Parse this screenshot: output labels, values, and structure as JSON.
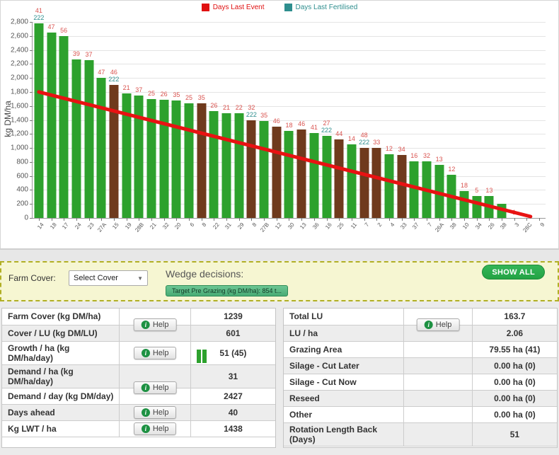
{
  "colors": {
    "bar_green": "#2da12d",
    "bar_brown": "#6f3a1d",
    "event_red": "#e01010",
    "fertilised_teal": "#2e8e8e",
    "trend_red": "#e81212"
  },
  "chart_data": {
    "type": "bar",
    "title": "",
    "xlabel": "",
    "ylabel": "kg DM/ha",
    "ylim": [
      0,
      2800
    ],
    "ytick_step": 200,
    "grid": true,
    "legend_position": "top-center",
    "legend": [
      {
        "label": "Days Last Event",
        "color": "#e01010"
      },
      {
        "label": "Days Last Fertilised",
        "color": "#2e8e8e"
      }
    ],
    "trend_line": {
      "start_value": 1800,
      "end_value": 0,
      "color": "#e81212"
    },
    "bars": [
      {
        "paddock": "14",
        "value": 2780,
        "color": "green",
        "days_last_event": 41,
        "days_last_fertilised": 222
      },
      {
        "paddock": "18",
        "value": 2650,
        "color": "green",
        "days_last_event": 47
      },
      {
        "paddock": "17",
        "value": 2600,
        "color": "green",
        "days_last_event": 56
      },
      {
        "paddock": "24",
        "value": 2260,
        "color": "green",
        "days_last_event": 39
      },
      {
        "paddock": "23",
        "value": 2250,
        "color": "green",
        "days_last_event": 37
      },
      {
        "paddock": "27A",
        "value": 2000,
        "color": "green",
        "days_last_event": 47
      },
      {
        "paddock": "15",
        "value": 1900,
        "color": "brown",
        "days_last_event": 46,
        "days_last_fertilised": 222
      },
      {
        "paddock": "19",
        "value": 1780,
        "color": "green",
        "days_last_event": 21
      },
      {
        "paddock": "28B",
        "value": 1750,
        "color": "green",
        "days_last_event": 37
      },
      {
        "paddock": "21",
        "value": 1700,
        "color": "green",
        "days_last_event": 25
      },
      {
        "paddock": "32",
        "value": 1685,
        "color": "green",
        "days_last_event": 26
      },
      {
        "paddock": "20",
        "value": 1680,
        "color": "green",
        "days_last_event": 35
      },
      {
        "paddock": "6",
        "value": 1640,
        "color": "green",
        "days_last_event": 25
      },
      {
        "paddock": "8",
        "value": 1635,
        "color": "brown",
        "days_last_event": 35
      },
      {
        "paddock": "22",
        "value": 1530,
        "color": "green",
        "days_last_event": 26
      },
      {
        "paddock": "31",
        "value": 1500,
        "color": "green",
        "days_last_event": 21
      },
      {
        "paddock": "29",
        "value": 1500,
        "color": "green",
        "days_last_event": 22
      },
      {
        "paddock": "8",
        "value": 1400,
        "color": "brown",
        "days_last_event": 32,
        "days_last_fertilised": 222
      },
      {
        "paddock": "27B",
        "value": 1380,
        "color": "green",
        "days_last_event": 35
      },
      {
        "paddock": "12",
        "value": 1300,
        "color": "brown",
        "days_last_event": 46
      },
      {
        "paddock": "30",
        "value": 1240,
        "color": "green",
        "days_last_event": 18
      },
      {
        "paddock": "13",
        "value": 1260,
        "color": "brown",
        "days_last_event": 46
      },
      {
        "paddock": "36",
        "value": 1210,
        "color": "green",
        "days_last_event": 41
      },
      {
        "paddock": "16",
        "value": 1175,
        "color": "green",
        "days_last_event": 27,
        "days_last_fertilised": 222
      },
      {
        "paddock": "25",
        "value": 1120,
        "color": "brown",
        "days_last_event": 44
      },
      {
        "paddock": "11",
        "value": 1055,
        "color": "green",
        "days_last_event": 14
      },
      {
        "paddock": "7",
        "value": 1000,
        "color": "brown",
        "days_last_event": 48,
        "days_last_fertilised": 222
      },
      {
        "paddock": "2",
        "value": 1000,
        "color": "brown",
        "days_last_event": 33
      },
      {
        "paddock": "4",
        "value": 905,
        "color": "green",
        "days_last_event": 12
      },
      {
        "paddock": "33",
        "value": 895,
        "color": "brown",
        "days_last_event": 34
      },
      {
        "paddock": "37",
        "value": 810,
        "color": "green",
        "days_last_event": 16
      },
      {
        "paddock": "7",
        "value": 805,
        "color": "green",
        "days_last_event": 32
      },
      {
        "paddock": "26A",
        "value": 760,
        "color": "green",
        "days_last_event": 13
      },
      {
        "paddock": "38",
        "value": 620,
        "color": "green",
        "days_last_event": 12
      },
      {
        "paddock": "10",
        "value": 385,
        "color": "green",
        "days_last_event": 18
      },
      {
        "paddock": "34",
        "value": 310,
        "color": "green",
        "days_last_event": 5
      },
      {
        "paddock": "26",
        "value": 310,
        "color": "green",
        "days_last_event": 13
      },
      {
        "paddock": "38",
        "value": 200,
        "color": "green"
      },
      {
        "paddock": "3",
        "value": 0,
        "color": "green",
        "days_last_event": 1
      },
      {
        "paddock": "28C",
        "value": 0,
        "color": "green"
      },
      {
        "paddock": "9",
        "value": 0,
        "color": "green"
      }
    ]
  },
  "wedge_panel": {
    "farm_cover_label": "Farm Cover:",
    "select_value": "Select Cover",
    "wedge_title": "Wedge decisions:",
    "wedge_badge": "Target Pre Grazing (kg DM/ha): 854 t...",
    "show_all_label": "SHOW ALL"
  },
  "help_label": "Help",
  "left_table": {
    "rows": [
      {
        "label": "Farm Cover (kg DM/ha)",
        "value": "1239",
        "help": "straddle"
      },
      {
        "label": "Cover / LU (kg DM/LU)",
        "value": "601",
        "help": "none"
      },
      {
        "label": "Growth / ha (kg DM/ha/day)",
        "value": "51 (45)",
        "help": "single",
        "growth_icon": true
      },
      {
        "label": "Demand / ha (kg DM/ha/day)",
        "value": "31",
        "help": "straddle"
      },
      {
        "label": "Demand / day (kg DM/day)",
        "value": "2427",
        "help": "none"
      },
      {
        "label": "Days ahead",
        "value": "40",
        "help": "single"
      },
      {
        "label": "Kg LWT / ha",
        "value": "1438",
        "help": "single"
      }
    ]
  },
  "right_table": {
    "rows": [
      {
        "label": "Total LU",
        "value": "163.7",
        "help": "straddle"
      },
      {
        "label": "LU / ha",
        "value": "2.06",
        "help": "none"
      },
      {
        "label": "Grazing Area",
        "value": "79.55 ha (41)",
        "help": "none"
      },
      {
        "label": "Silage - Cut Later",
        "value": "0.00 ha (0)",
        "help": "none"
      },
      {
        "label": "Silage - Cut Now",
        "value": "0.00 ha (0)",
        "help": "none"
      },
      {
        "label": "Reseed",
        "value": "0.00 ha (0)",
        "help": "none"
      },
      {
        "label": "Other",
        "value": "0.00 ha (0)",
        "help": "none"
      },
      {
        "label": "Rotation Length Back (Days)",
        "value": "51",
        "help": "none"
      }
    ]
  }
}
